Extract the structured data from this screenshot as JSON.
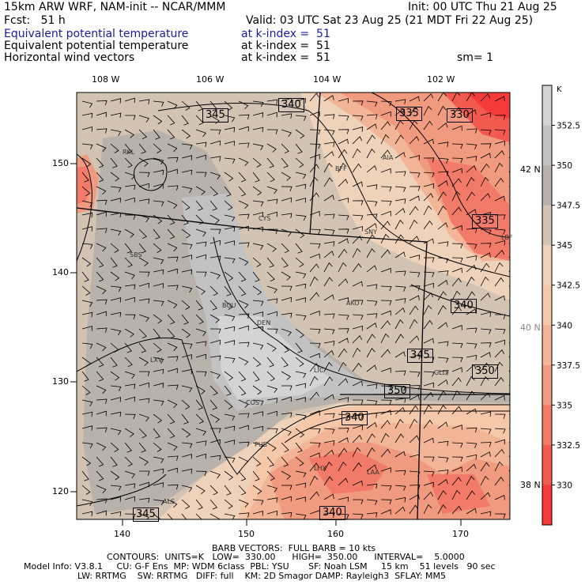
{
  "header": {
    "left_title": "15km ARW WRF, NAM-init -- NCAR/MMM",
    "init": "Init: 00 UTC Thu 21 Aug 25",
    "fcst": "Fcst:   51 h",
    "valid": "Valid: 03 UTC Sat 23 Aug 25 (21 MDT Fri 22 Aug 25)",
    "fields": [
      {
        "name": "Equivalent potential temperature",
        "level": "at k-index =  51",
        "color": "#1a1aa6"
      },
      {
        "name": "Equivalent potential temperature",
        "level": "at k-index =  51",
        "color": "#000000"
      },
      {
        "name": "Horizontal wind vectors",
        "level": "at k-index =  51",
        "color": "#000000"
      }
    ],
    "sm": "sm= 1"
  },
  "axes": {
    "lon_top": [
      "108 W",
      "106 W",
      "104 W",
      "102 W"
    ],
    "lat_right": [
      "42 N",
      "40 N",
      "38 N"
    ],
    "x_ticks": [
      "140",
      "150",
      "160",
      "170"
    ],
    "y_ticks": [
      "150",
      "140",
      "130",
      "120"
    ]
  },
  "colorbar": {
    "unit": "K",
    "labels": [
      "352.5",
      "350",
      "347.5",
      "345",
      "342.5",
      "340",
      "337.5",
      "335",
      "332.5",
      "330"
    ],
    "colors": [
      "#d4d4d4",
      "#c2c2c2",
      "#b8b2ac",
      "#d2c3b3",
      "#efd2ba",
      "#f6c8aa",
      "#f3b597",
      "#f09a80",
      "#f27a68",
      "#f25a50",
      "#f43b3a"
    ]
  },
  "contour_labels": [
    "345",
    "340",
    "335",
    "330",
    "335",
    "340",
    "345",
    "350",
    "350",
    "340",
    "345",
    "340"
  ],
  "cities": [
    "RKL",
    "BFF",
    "AIA",
    "CYS",
    "SNY",
    "SBS",
    "BOU",
    "DEN",
    "AKO",
    "LXV",
    "LIC",
    "GLD",
    "COS",
    "PUB",
    "LHX",
    "LAA",
    "ALS",
    "LBF"
  ],
  "footer": {
    "barb": "BARB VECTORS:  FULL BARB = 10 kts",
    "contours": "CONTOURS:  UNITS=K   LOW=  330.00      HIGH=  350.00      INTERVAL=    5.0000",
    "model1": "Model Info: V3.8.1     CU: G-F Ens  MP: WDM 6class  PBL: YSU       SF: Noah LSM     15 km    51 levels   90 sec",
    "model2": "LW: RRTMG    SW: RRTMG   DIFF: full    KM: 2D Smagor DAMP: Rayleigh3  SFLAY: MM5"
  }
}
